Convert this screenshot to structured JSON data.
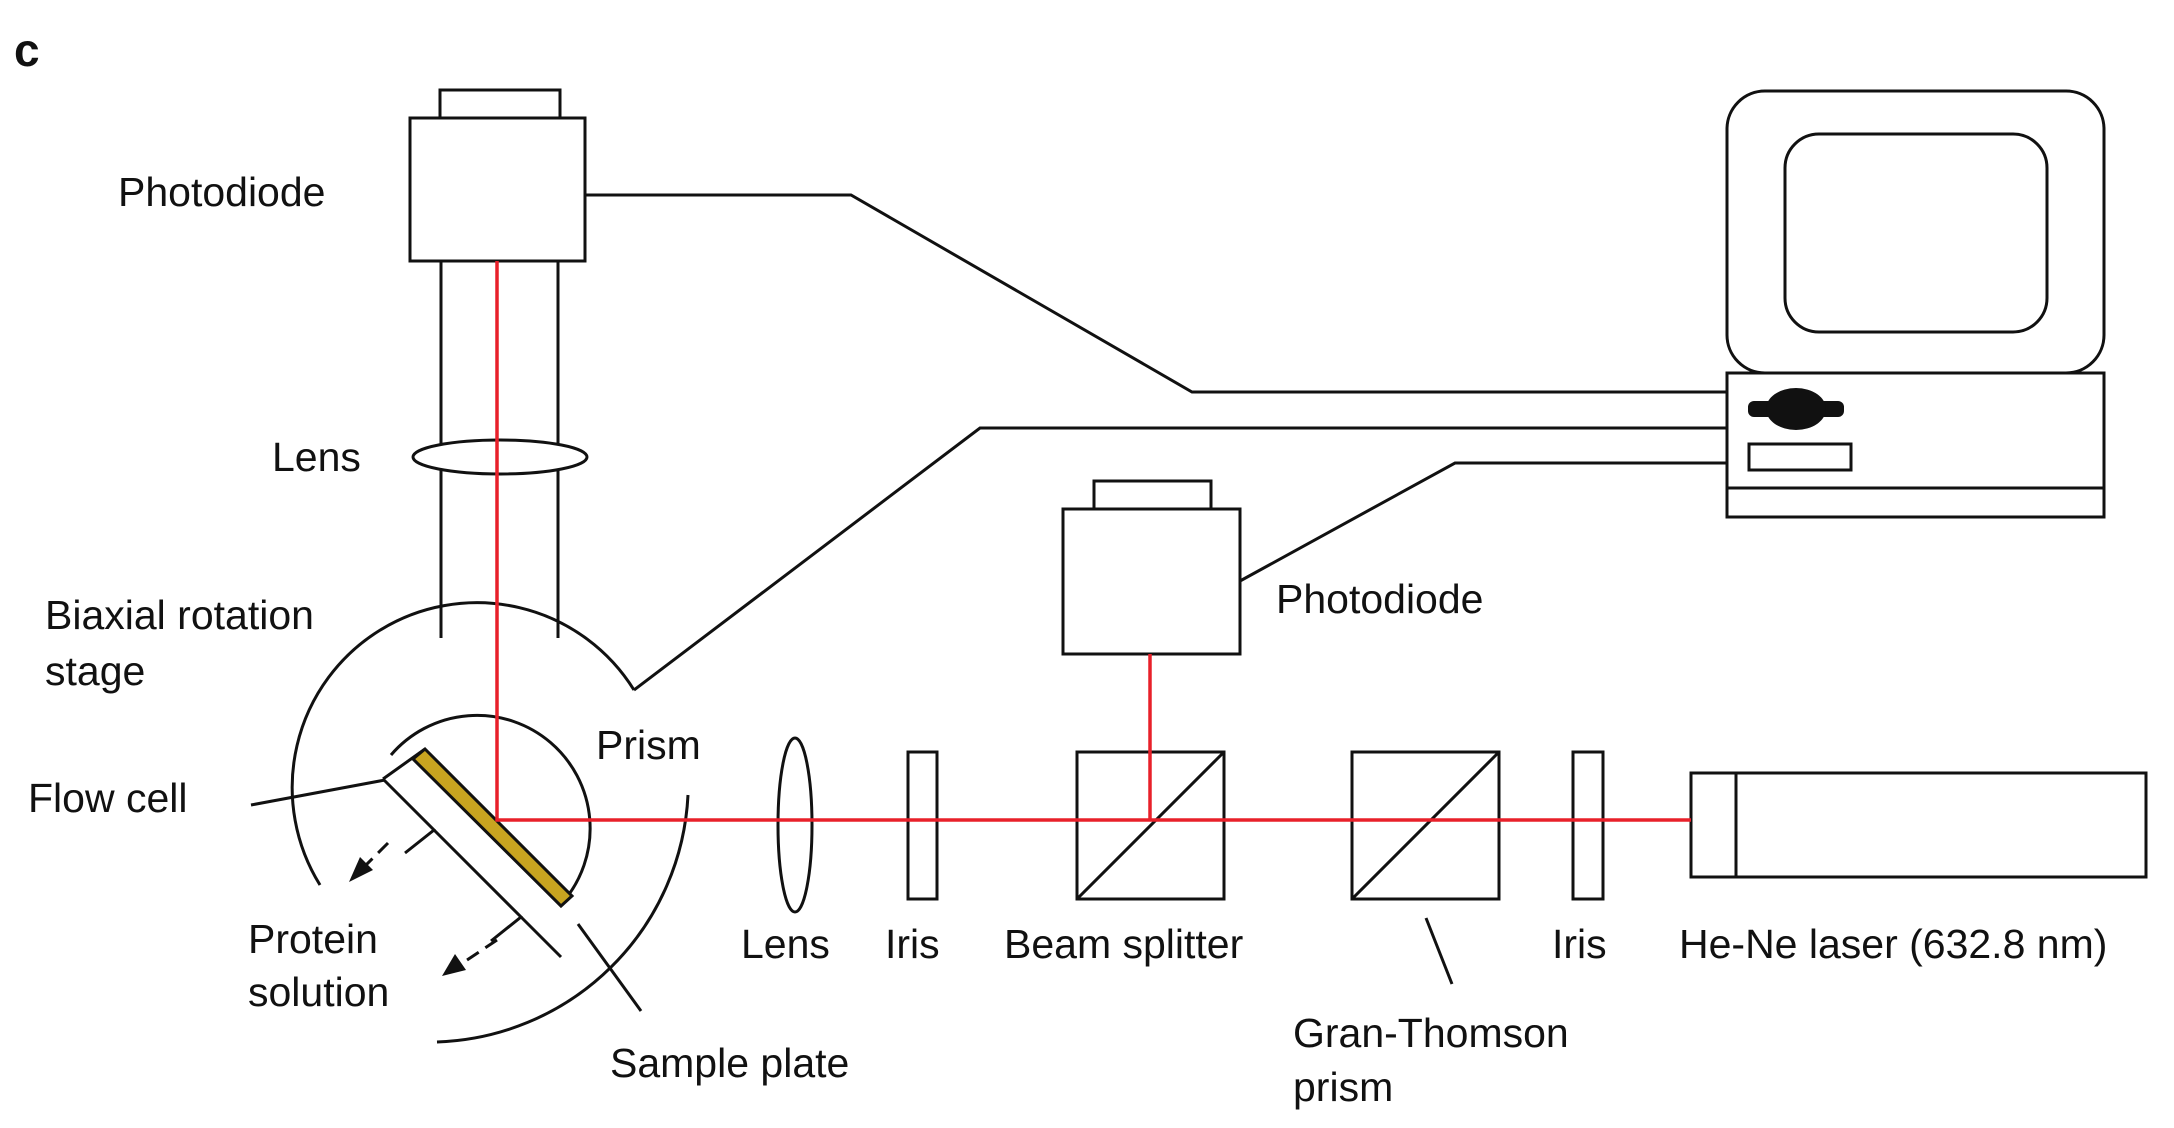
{
  "panel_label": "c",
  "colors": {
    "beam": "#e8202a",
    "line": "#111111",
    "sample_plate": "#c8a420"
  },
  "labels": {
    "photodiode_top": "Photodiode",
    "lens_vertical": "Lens",
    "biaxial_line1": "Biaxial rotation",
    "biaxial_line2": "stage",
    "prism": "Prism",
    "flow_cell": "Flow cell",
    "protein_line1": "Protein",
    "protein_line2": "solution",
    "sample_plate": "Sample plate",
    "lens_horizontal": "Lens",
    "iris_left": "Iris",
    "beam_splitter": "Beam splitter",
    "photodiode_right": "Photodiode",
    "gran_thomson_line1": "Gran-Thomson",
    "gran_thomson_line2": "prism",
    "iris_right": "Iris",
    "laser": "He-Ne laser (632.8 nm)"
  }
}
